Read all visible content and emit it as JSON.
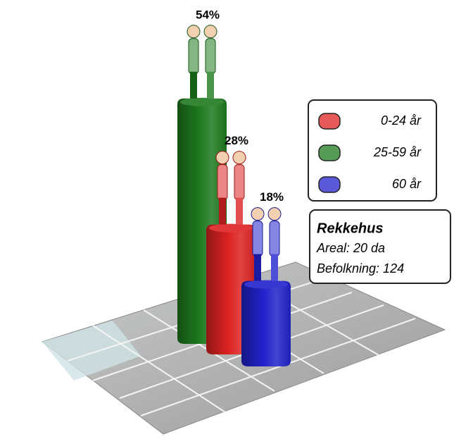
{
  "chart_data": {
    "type": "bar3d",
    "series": [
      {
        "name": "0-24 år",
        "color": "#dd2222",
        "values": [
          28
        ],
        "value_labels": [
          "28%"
        ]
      },
      {
        "name": "25-59 år",
        "color": "#1e7a1e",
        "values": [
          54
        ],
        "value_labels": [
          "54%"
        ]
      },
      {
        "name": "60 år",
        "color": "#2222cc",
        "values": [
          18
        ],
        "value_labels": [
          "18%"
        ]
      }
    ],
    "annotation": {
      "title": "Rekkehus",
      "lines": [
        "Areal: 20 da",
        "Befolkning: 124"
      ]
    }
  }
}
